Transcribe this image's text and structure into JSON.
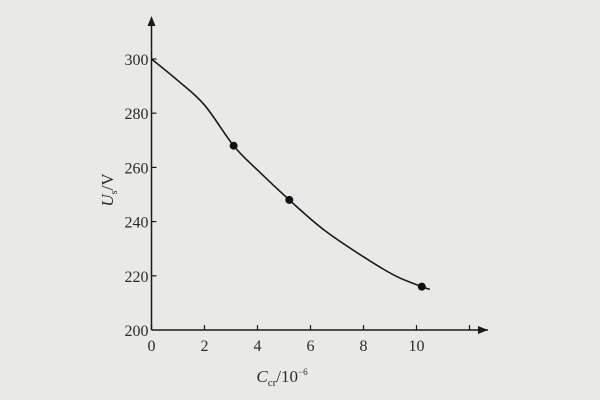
{
  "chart_data": {
    "type": "line",
    "title": "",
    "xlabel": {
      "main": "C",
      "sub": "cr",
      "unit": "/10",
      "exp": "−6"
    },
    "ylabel": {
      "main": "U",
      "sub": "s",
      "unit": "/V"
    },
    "xlim": [
      0,
      13
    ],
    "ylim": [
      200,
      315
    ],
    "x_ticks": [
      0,
      2,
      4,
      6,
      8,
      10,
      12
    ],
    "x_tick_labels": [
      "0",
      "2",
      "4",
      "6",
      "8",
      "10"
    ],
    "y_ticks": [
      200,
      220,
      240,
      260,
      280,
      300
    ],
    "y_tick_labels": [
      "200",
      "220",
      "240",
      "260",
      "280",
      "300"
    ],
    "grid": false,
    "points": [
      {
        "x": 3.1,
        "y": 268
      },
      {
        "x": 5.2,
        "y": 248
      },
      {
        "x": 10.2,
        "y": 216
      }
    ],
    "curve": [
      {
        "x": 0,
        "y": 300
      },
      {
        "x": 1,
        "y": 292
      },
      {
        "x": 2,
        "y": 283
      },
      {
        "x": 3.1,
        "y": 268
      },
      {
        "x": 4,
        "y": 259
      },
      {
        "x": 5.2,
        "y": 248
      },
      {
        "x": 6.5,
        "y": 237
      },
      {
        "x": 8,
        "y": 227
      },
      {
        "x": 9.2,
        "y": 220
      },
      {
        "x": 10.2,
        "y": 216
      },
      {
        "x": 10.5,
        "y": 215
      }
    ],
    "colors": {
      "line": "#1a1a1a",
      "background": "#e9e9e7"
    }
  }
}
